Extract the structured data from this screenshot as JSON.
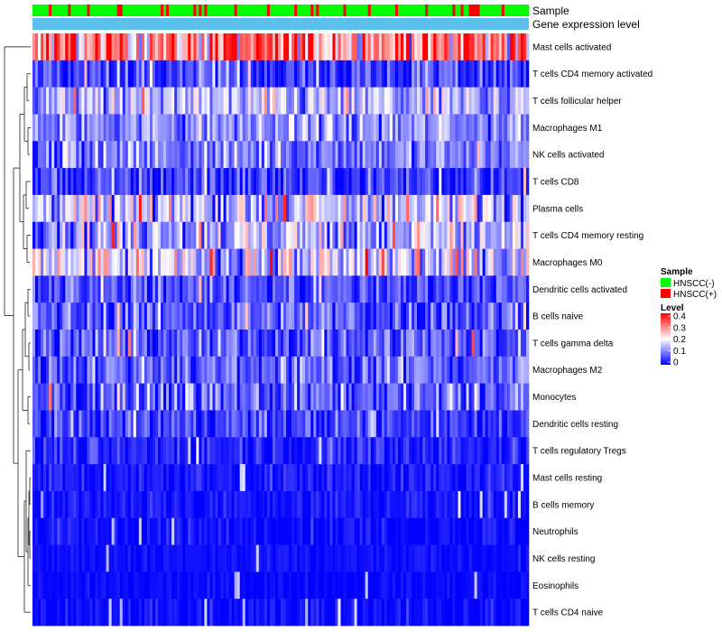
{
  "chart_data": {
    "type": "heatmap",
    "title": "",
    "annotation_tracks": [
      "Sample",
      "Gene expression level"
    ],
    "rows": [
      "Mast cells activated",
      "T cells CD4 memory activated",
      "T cells follicular helper",
      "Macrophages M1",
      "NK cells activated",
      "T cells CD8",
      "Plasma cells",
      "T cells CD4 memory resting",
      "Macrophages M0",
      "Dendritic cells activated",
      "B cells naive",
      "T cells gamma delta",
      "Macrophages M2",
      "Monocytes",
      "Dendritic cells resting",
      "T cells regulatory  Tregs",
      "Mast cells resting",
      "B cells memory",
      "Neutrophils",
      "NK cells resting",
      "Eosinophils",
      "T cells CD4 naive"
    ],
    "row_mean_level": [
      0.3,
      0.05,
      0.13,
      0.11,
      0.1,
      0.05,
      0.15,
      0.14,
      0.16,
      0.06,
      0.07,
      0.07,
      0.08,
      0.07,
      0.05,
      0.03,
      0.02,
      0.02,
      0.01,
      0.01,
      0.005,
      0.01
    ],
    "row_spread": [
      0.1,
      0.05,
      0.06,
      0.05,
      0.05,
      0.05,
      0.08,
      0.07,
      0.08,
      0.04,
      0.05,
      0.05,
      0.05,
      0.05,
      0.04,
      0.03,
      0.02,
      0.02,
      0.02,
      0.01,
      0.01,
      0.02
    ],
    "n_samples": 182,
    "hnscc_positive_fraction": 0.2,
    "color_scale": {
      "low": "#0000ff",
      "mid": "#ffffff",
      "high": "#ff0000",
      "min": 0,
      "mid_value": 0.2,
      "max": 0.4
    },
    "legends": {
      "sample": {
        "title": "Sample",
        "entries": [
          {
            "label": "HNSCC(-)",
            "color": "#00ff00"
          },
          {
            "label": "HNSCC(+)",
            "color": "#ff0000"
          }
        ]
      },
      "level": {
        "title": "Level",
        "ticks": [
          "0.4",
          "0.3",
          "0.2",
          "0.1",
          "0"
        ],
        "tick_values": [
          0.4,
          0.3,
          0.2,
          0.1,
          0
        ]
      }
    },
    "gene_expression_color": "#5bc0eb"
  }
}
